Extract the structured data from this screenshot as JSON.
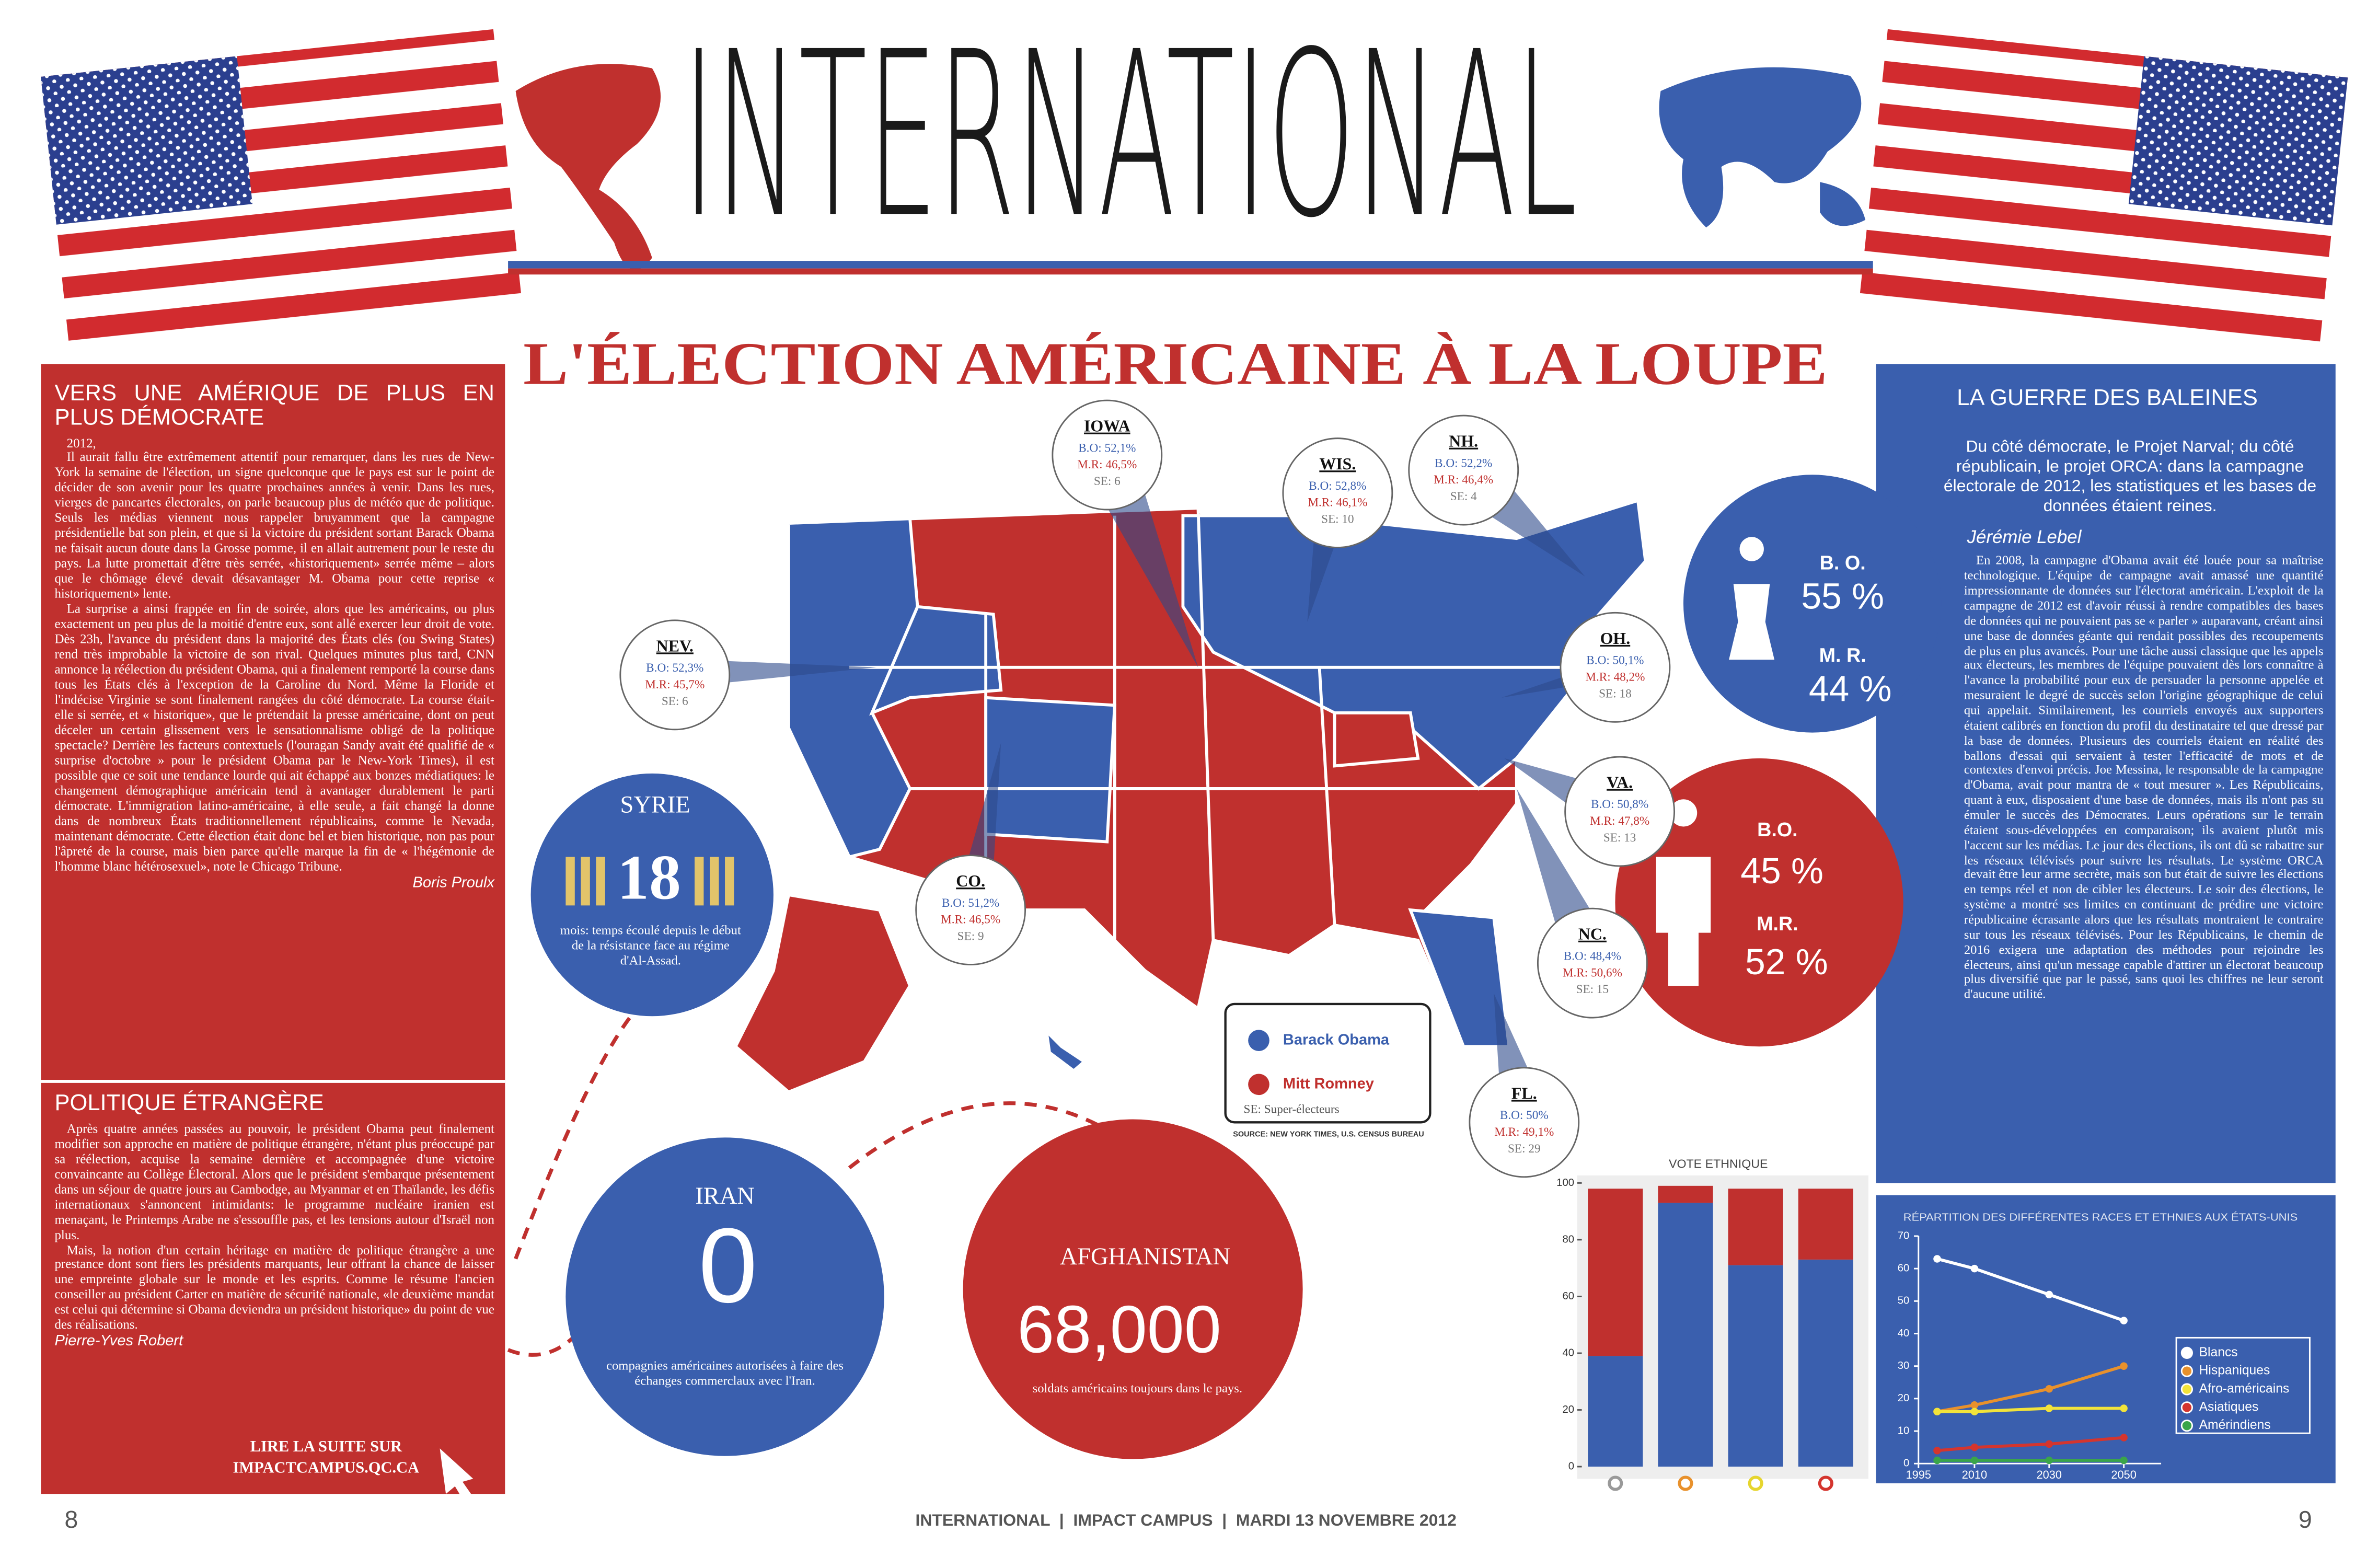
{
  "header": {
    "title": "INTERNATIONAL",
    "subtitle": "L'ÉLECTION AMÉRICAINE À LA LOUPE"
  },
  "left": {
    "article1": {
      "title": "VERS UNE AMÉRIQUE DE PLUS EN PLUS DÉMOCRATE",
      "paragraphs": [
        "2012,",
        "Il aurait fallu être extrêmement attentif pour remarquer, dans les rues de New-York la semaine de l'élection, un signe quelconque que le pays est sur le point de décider de son avenir pour les quatre prochaines années à venir. Dans les rues, vierges de pancartes électorales, on parle beaucoup plus de météo que de politique. Seuls les médias viennent nous rappeler bruyamment que la campagne présidentielle bat son plein, et que si la victoire du président sortant Barack Obama ne faisait aucun doute dans la Grosse pomme, il en allait autrement pour le reste du pays. La lutte promettait d'être très serrée, «historiquement» serrée même – alors que le chômage élevé devait désavantager M. Obama pour cette reprise « historiquement» lente.",
        "La surprise a ainsi frappée en fin de soirée, alors que les américains, ou plus exactement un peu plus de la moitié d'entre eux, sont allé exercer leur droit de vote. Dès 23h, l'avance du président dans la majorité des États clés (ou Swing States) rend très improbable la victoire de son rival. Quelques minutes plus tard, CNN annonce la réélection du président Obama, qui a finalement remporté la course dans tous les États clés à l'exception de la Caroline du Nord. Même la Floride et l'indécise Virginie se sont finalement rangées du côté démocrate. La course était-elle si serrée, et « historique», que le prétendait la presse américaine, dont on peut déceler un certain glissement vers le sensationnalisme obligé de la politique spectacle? Derrière les facteurs contextuels (l'ouragan Sandy avait été qualifié de « surprise d'octobre » pour le président Obama par le New-York Times), il est possible que ce soit une tendance lourde qui ait échappé aux bonzes médiatiques: le changement démographique américain tend à avantager durablement le parti démocrate. L'immigration latino-américaine, à elle seule, a fait changé la donne dans de nombreux États traditionnellement républicains, comme le Nevada, maintenant démocrate. Cette élection était donc bel et bien historique, non pas pour l'âpreté de la course, mais bien parce qu'elle marque la fin de « l'hégémonie de l'homme blanc hétérosexuel», note le Chicago Tribune."
      ],
      "author": "Boris Proulx"
    },
    "article2": {
      "title": "POLITIQUE ÉTRANGÈRE",
      "paragraphs": [
        "Après quatre années passées au pouvoir, le président Obama peut finalement modifier son approche en matière de politique étrangère, n'étant plus préoccupé par sa réélection, acquise la semaine dernière et accompagnée d'une victoire convaincante au Collège Électoral. Alors que le président s'embarque présentement dans un séjour de quatre jours au Cambodge, au Myanmar et en Thaïlande, les défis internationaux s'annoncent intimidants: le programme nucléaire iranien est menaçant, le Printemps Arabe ne s'essouffle pas, et les tensions autour d'Israël non plus.",
        "Mais, la notion d'un certain héritage en matière de politique étrangère a une prestance dont sont fiers les présidents marquants, leur offrant la chance de laisser une empreinte globale sur le monde et les esprits. Comme le résume l'ancien conseiller au président Carter en matière de sécurité nationale, «le deuxième mandat est celui qui détermine si Obama deviendra un président historique» du point de vue des réalisations."
      ],
      "author": "Pierre-Yves Robert",
      "link": "LIRE LA SUITE SUR IMPACTCAMPUS.QC.CA"
    }
  },
  "right": {
    "title": "LA GUERRE DES BALEINES",
    "lead": "Du côté démocrate, le Projet Narval; du côté républicain, le projet ORCA: dans la campagne électorale de 2012, les statistiques et les bases de données étaient reines.",
    "author": "Jérémie Lebel",
    "body": "En 2008, la campagne d'Obama avait été louée pour sa maîtrise technologique. L'équipe de campagne avait amassé une quantité impressionnante de données sur l'électorat américain. L'exploit de la campagne de 2012 est d'avoir réussi à rendre compatibles des bases de données qui ne pouvaient pas se « parler » auparavant, créant ainsi une base de données géante qui rendait possibles des recoupements de plus en plus avancés. Pour une tâche aussi classique que les appels aux électeurs, les membres de l'équipe pouvaient dès lors connaître à l'avance la probabilité pour eux de persuader la personne appelée et mesuraient le degré de succès selon l'origine géographique de celui qui appelait. Similairement, les courriels envoyés aux supporters étaient calibrés en fonction du profil du destinataire tel que dressé par la base de données. Plusieurs des courriels étaient en réalité des ballons d'essai qui servaient à tester l'efficacité de mots et de contextes d'envoi précis. Joe Messina, le responsable de la campagne d'Obama, avait pour mantra de « tout mesurer ». Les Républicains, quant à eux, disposaient d'une base de données, mais ils n'ont pas su émuler le succès des Démocrates. Leurs opérations sur le terrain étaient sous-développées en comparaison; ils avaient plutôt mis l'accent sur les médias. Le jour des élections, ils ont dû se rabattre sur les réseaux télévisés pour suivre les résultats. Le système ORCA devait être leur arme secrète, mais son but était de suivre les élections en temps réel et non de cibler les électeurs. Le soir des élections, le système a montré ses limites en continuant de prédire une victoire républicaine écrasante alors que les résultats montraient le contraire sur tous les réseaux télévisés. Pour les Républicains, le chemin de 2016 exigera une adaptation des méthodes pour rejoindre les électeurs, ainsi qu'un message capable d'attirer un électorat beaucoup plus diversifié que par le passé, sans quoi les chiffres ne leur seront d'aucune utilité."
  },
  "states": [
    {
      "name": "IOWA",
      "bo": "B.O: 52,1%",
      "mr": "M.R: 46,5%",
      "se": "SE: 6"
    },
    {
      "name": "WIS.",
      "bo": "B.O: 52,8%",
      "mr": "M.R: 46,1%",
      "se": "SE: 10"
    },
    {
      "name": "NH.",
      "bo": "B.O: 52,2%",
      "mr": "M.R: 46,4%",
      "se": "SE: 4"
    },
    {
      "name": "NEV.",
      "bo": "B.O: 52,3%",
      "mr": "M.R: 45,7%",
      "se": "SE: 6"
    },
    {
      "name": "OH.",
      "bo": "B.O: 50,1%",
      "mr": "M.R: 48,2%",
      "se": "SE: 18"
    },
    {
      "name": "VA.",
      "bo": "B.O: 50,8%",
      "mr": "M.R: 47,8%",
      "se": "SE: 13"
    },
    {
      "name": "CO.",
      "bo": "B.O: 51,2%",
      "mr": "M.R: 46,5%",
      "se": "SE: 9"
    },
    {
      "name": "NC.",
      "bo": "B.O: 48,4%",
      "mr": "M.R: 50,6%",
      "se": "SE: 15"
    },
    {
      "name": "FL.",
      "bo": "B.O: 50%",
      "mr": "M.R: 49,1%",
      "se": "SE: 29"
    }
  ],
  "legend": {
    "obama": "Barack Obama",
    "romney": "Mitt Romney",
    "se": "SE: Super-électeurs",
    "source": "SOURCE: NEW YORK TIMES, U.S. CENSUS BUREAU"
  },
  "gender": {
    "women": {
      "bo_label": "B. O.",
      "bo": "55 %",
      "mr_label": "M. R.",
      "mr": "44 %"
    },
    "men": {
      "bo_label": "B.O.",
      "bo": "45 %",
      "mr_label": "M.R.",
      "mr": "52 %"
    }
  },
  "bubbles": {
    "syrie": {
      "title": "SYRIE",
      "number": "18",
      "caption": "mois: temps écoulé depuis le début de la résistance face au régime d'Al-Assad."
    },
    "iran": {
      "title": "IRAN",
      "number": "0",
      "caption": "compagnies américaines autorisées à faire des échanges commerclaux avec l'Iran."
    },
    "afghanistan": {
      "title": "AFGHANISTAN",
      "number": "68,000",
      "caption": "soldats américains toujours dans le pays."
    }
  },
  "vote_chart": {
    "type": "stacked-bar",
    "title": "VOTE ETHNIQUE",
    "series": [
      {
        "color": "#3a5fae",
        "values": [
          39,
          93,
          71,
          73
        ]
      },
      {
        "color": "#c0302e",
        "values": [
          59,
          6,
          27,
          25
        ]
      }
    ],
    "ylim": [
      0,
      100
    ],
    "yticks": [
      0,
      20,
      40,
      60,
      80,
      100
    ]
  },
  "race_chart": {
    "type": "line",
    "title": "RÉPARTITION DES DIFFÉRENTES RACES ET ETHNIES AUX ÉTATS-UNIS",
    "x": [
      2000,
      2010,
      2030,
      2050
    ],
    "series": [
      {
        "name": "Blancs",
        "color": "#ffffff",
        "values": [
          63,
          60,
          52,
          44
        ]
      },
      {
        "name": "Hispaniques",
        "color": "#e8912c",
        "values": [
          16,
          18,
          23,
          30
        ]
      },
      {
        "name": "Afro-américains",
        "color": "#f2e33a",
        "values": [
          16,
          16,
          17,
          17
        ]
      },
      {
        "name": "Asiatiques",
        "color": "#d4352e",
        "values": [
          4,
          5,
          6,
          8
        ]
      },
      {
        "name": "Amérindiens",
        "color": "#3aa54a",
        "values": [
          1,
          1,
          1,
          1
        ]
      }
    ],
    "xlim": [
      1995,
      2060
    ],
    "xticks": [
      1995,
      2010,
      2030,
      2050
    ],
    "ylim": [
      0,
      70
    ],
    "yticks": [
      0,
      10,
      20,
      30,
      40,
      50,
      60,
      70
    ]
  },
  "footer": {
    "left_page": "8",
    "center": "INTERNATIONAL  |  IMPACT CAMPUS  |  MARDI 13 NOVEMBRE 2012",
    "right_page": "9"
  }
}
